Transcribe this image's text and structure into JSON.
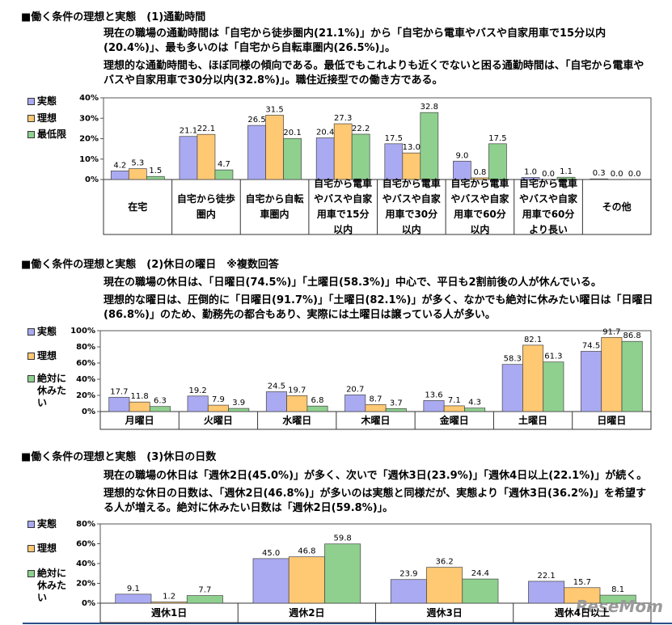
{
  "chart_data": [
    {
      "type": "bar",
      "title": "■働く条件の理想と実態　(1)通勤時間",
      "paragraphs": [
        "現在の職場の通勤時間は「自宅から徒歩圏内(21.1%)」から「自宅から電車やバスや自家用車で15分以内(20.4%)」、最も多いのは「自宅から自転車圏内(26.5%)」。",
        "理想的な通勤時間も、ほぼ同様の傾向である。最低でもこれよりも近くでないと困る通勤時間は、「自宅から電車やバスや自家用車で30分以内(32.8%)」。職住近接型での働き方である。"
      ],
      "categories": [
        "在宅",
        "自宅から徒歩圏内",
        "自宅から自転車圏内",
        "自宅から電車やバスや自家用車で15分以内",
        "自宅から電車やバスや自家用車で30分以内",
        "自宅から電車やバスや自家用車で60分以内",
        "自宅から電車やバスや自家用車で60分より長い",
        "その他"
      ],
      "series": [
        {
          "name": "実態",
          "color": "#aaaaf2",
          "values": [
            4.2,
            21.1,
            26.5,
            20.4,
            17.5,
            9.0,
            1.0,
            0.3
          ],
          "value_labels": [
            "4.2",
            "21.1",
            "26.5",
            "20.4",
            "17.5",
            "9.0",
            "1.0",
            "0.3"
          ]
        },
        {
          "name": "理想",
          "color": "#ffc873",
          "values": [
            5.3,
            22.1,
            31.5,
            27.3,
            13.0,
            0.8,
            0.0,
            0.0
          ],
          "value_labels": [
            "5.3",
            "22.1",
            "31.5",
            "27.3",
            "13.0",
            "0.8",
            "0.0",
            "0.0"
          ]
        },
        {
          "name": "最低限",
          "color": "#8fd08f",
          "values": [
            1.5,
            4.7,
            20.1,
            22.2,
            32.8,
            17.5,
            1.1,
            0.0
          ],
          "value_labels": [
            "1.5",
            "4.7",
            "20.1",
            "22.2",
            "32.8",
            "17.5",
            "1.1",
            "0.0"
          ]
        }
      ],
      "ylim": [
        0,
        40
      ],
      "yticks": [
        {
          "value": 0,
          "label": "0%"
        },
        {
          "value": 10,
          "label": "10%"
        },
        {
          "value": 20,
          "label": "20%"
        },
        {
          "value": 30,
          "label": "30%"
        },
        {
          "value": 40,
          "label": "40%"
        }
      ]
    },
    {
      "type": "bar",
      "title": "■働く条件の理想と実態　(2)休日の曜日　※複数回答",
      "paragraphs": [
        "現在の職場の休日は、「日曜日(74.5%)」「土曜日(58.3%)」中心で、平日も2割前後の人が休んでいる。",
        "理想的な曜日は、圧倒的に「日曜日(91.7%)」「土曜日(82.1%)」が多く、なかでも絶対に休みたい曜日は「日曜日(86.8%)」のため、勤務先の都合もあり、実際には土曜日は譲っている人が多い。"
      ],
      "categories": [
        "月曜日",
        "火曜日",
        "水曜日",
        "木曜日",
        "金曜日",
        "土曜日",
        "日曜日"
      ],
      "series": [
        {
          "name": "実態",
          "color": "#aaaaf2",
          "values": [
            17.7,
            19.2,
            24.5,
            20.7,
            13.6,
            58.3,
            74.5
          ]
        },
        {
          "name": "理想",
          "color": "#ffc873",
          "values": [
            11.8,
            7.9,
            19.7,
            8.7,
            7.1,
            82.1,
            91.7
          ]
        },
        {
          "name": "絶対に休みたい",
          "color": "#8fd08f",
          "values": [
            6.3,
            3.9,
            6.8,
            3.7,
            4.3,
            61.3,
            86.8
          ]
        }
      ],
      "ylim": [
        0,
        100
      ],
      "yticks": [
        {
          "value": 0,
          "label": "0%"
        },
        {
          "value": 20,
          "label": "20%"
        },
        {
          "value": 40,
          "label": "40%"
        },
        {
          "value": 60,
          "label": "60%"
        },
        {
          "value": 80,
          "label": "80%"
        },
        {
          "value": 100,
          "label": "100%"
        }
      ]
    },
    {
      "type": "bar",
      "title": "■働く条件の理想と実態　(3)休日の日数",
      "paragraphs": [
        "現在の職場の休日は「週休2日(45.0%)」が多く、次いで「週休3日(23.9%)」「週休4日以上(22.1%)」が続く。",
        "理想的な休日の日数は、「週休2日(46.8%)」が多いのは実態と同様だが、実態より「週休3日(36.2%)」を希望する人が増える。絶対に休みたい日数は「週休2日(59.8%)」。"
      ],
      "categories": [
        "週休1日",
        "週休2日",
        "週休3日",
        "週休4日以上"
      ],
      "series": [
        {
          "name": "実態",
          "color": "#aaaaf2",
          "values": [
            9.1,
            45.0,
            23.9,
            22.1
          ],
          "value_labels": [
            "9.1",
            "45.0",
            "23.9",
            "22.1"
          ]
        },
        {
          "name": "理想",
          "color": "#ffc873",
          "values": [
            1.2,
            46.8,
            36.2,
            15.7
          ]
        },
        {
          "name": "絶対に休みたい",
          "color": "#8fd08f",
          "values": [
            7.7,
            59.8,
            24.4,
            8.1
          ]
        }
      ],
      "ylim": [
        0,
        80
      ],
      "yticks": [
        {
          "value": 0,
          "label": "0%"
        },
        {
          "value": 20,
          "label": "20%"
        },
        {
          "value": 40,
          "label": "40%"
        },
        {
          "value": 60,
          "label": "60%"
        },
        {
          "value": 80,
          "label": "80%"
        }
      ]
    }
  ],
  "watermark": "ReseMom"
}
